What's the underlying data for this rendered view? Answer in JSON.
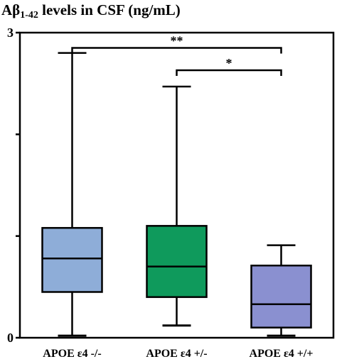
{
  "title": {
    "prefix": "Aβ",
    "subscript": "1-42",
    "suffix": " levels in CSF (ng/mL)"
  },
  "chart_data": {
    "type": "box",
    "title": "Aβ1-42 levels in CSF (ng/mL)",
    "xlabel": "",
    "ylabel": "",
    "ylim": [
      0,
      3
    ],
    "yticks": [
      "0",
      "3"
    ],
    "grid": false,
    "categories": [
      "APOE ε4 -/-",
      "APOE ε4 +/-",
      "APOE ε4 +/+"
    ],
    "boxes": [
      {
        "min": 0.02,
        "q1": 0.45,
        "median": 0.78,
        "q3": 1.08,
        "max": 2.8,
        "color": "#8eadd8"
      },
      {
        "min": 0.12,
        "q1": 0.4,
        "median": 0.7,
        "q3": 1.1,
        "max": 2.47,
        "color": "#0f9a5c"
      },
      {
        "min": 0.02,
        "q1": 0.1,
        "median": 0.33,
        "q3": 0.71,
        "max": 0.91,
        "color": "#8a90d0"
      }
    ],
    "significance": [
      {
        "from": 0,
        "to": 2,
        "label": "**",
        "y": 2.85
      },
      {
        "from": 1,
        "to": 2,
        "label": "*",
        "y": 2.63
      }
    ]
  }
}
